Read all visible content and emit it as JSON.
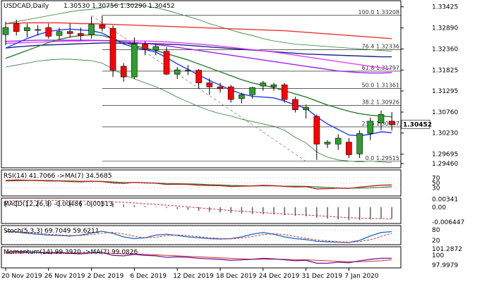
{
  "chart_data": {
    "type": "candlestick",
    "title": "USDCAD,Daily",
    "ohlc_label": "1.30530 1.30756 1.30290 1.30452",
    "last_price": 1.30452,
    "last_price_label": "1.30452",
    "y_range": [
      1.2935,
      1.3358
    ],
    "y_ticks": [
      "1.33425",
      "1.32890",
      "1.32360",
      "1.31825",
      "1.31295",
      "1.30760",
      "1.30230",
      "1.29695",
      "1.29460"
    ],
    "y_tick_values": [
      1.33425,
      1.3289,
      1.3236,
      1.31825,
      1.31295,
      1.3076,
      1.3023,
      1.29695,
      1.2946
    ],
    "x_ticks": [
      "20 Nov 2019",
      "26 Nov 2019",
      "2 Dec 2019",
      "6 Dec 2019",
      "12 Dec 2019",
      "18 Dec 2019",
      "24 Dec 2019",
      "31 Dec 2019",
      "7 Jan 2020"
    ],
    "x_tick_index": [
      0,
      4,
      8,
      12,
      16,
      20,
      24,
      28,
      32
    ],
    "candles": [
      {
        "o": 1.3272,
        "h": 1.3305,
        "l": 1.3245,
        "c": 1.329
      },
      {
        "o": 1.33,
        "h": 1.331,
        "l": 1.327,
        "c": 1.328
      },
      {
        "o": 1.3282,
        "h": 1.33,
        "l": 1.3265,
        "c": 1.329
      },
      {
        "o": 1.3283,
        "h": 1.3296,
        "l": 1.327,
        "c": 1.3285
      },
      {
        "o": 1.329,
        "h": 1.33,
        "l": 1.3262,
        "c": 1.3268
      },
      {
        "o": 1.327,
        "h": 1.329,
        "l": 1.326,
        "c": 1.328
      },
      {
        "o": 1.328,
        "h": 1.33,
        "l": 1.3265,
        "c": 1.3275
      },
      {
        "o": 1.3275,
        "h": 1.329,
        "l": 1.3258,
        "c": 1.327
      },
      {
        "o": 1.3272,
        "h": 1.3318,
        "l": 1.3262,
        "c": 1.3298
      },
      {
        "o": 1.3297,
        "h": 1.332,
        "l": 1.328,
        "c": 1.3288
      },
      {
        "o": 1.3288,
        "h": 1.3295,
        "l": 1.3165,
        "c": 1.3182
      },
      {
        "o": 1.3192,
        "h": 1.32,
        "l": 1.3153,
        "c": 1.3165
      },
      {
        "o": 1.3165,
        "h": 1.3265,
        "l": 1.316,
        "c": 1.3248
      },
      {
        "o": 1.3248,
        "h": 1.3255,
        "l": 1.322,
        "c": 1.3235
      },
      {
        "o": 1.3233,
        "h": 1.325,
        "l": 1.322,
        "c": 1.3242
      },
      {
        "o": 1.323,
        "h": 1.324,
        "l": 1.317,
        "c": 1.3172
      },
      {
        "o": 1.3172,
        "h": 1.319,
        "l": 1.316,
        "c": 1.3183
      },
      {
        "o": 1.318,
        "h": 1.3195,
        "l": 1.317,
        "c": 1.3182
      },
      {
        "o": 1.3182,
        "h": 1.3185,
        "l": 1.3135,
        "c": 1.315
      },
      {
        "o": 1.315,
        "h": 1.3162,
        "l": 1.312,
        "c": 1.314
      },
      {
        "o": 1.314,
        "h": 1.315,
        "l": 1.3125,
        "c": 1.3135
      },
      {
        "o": 1.314,
        "h": 1.3145,
        "l": 1.31,
        "c": 1.3108
      },
      {
        "o": 1.311,
        "h": 1.3125,
        "l": 1.3098,
        "c": 1.312
      },
      {
        "o": 1.312,
        "h": 1.314,
        "l": 1.311,
        "c": 1.3138
      },
      {
        "o": 1.3142,
        "h": 1.3155,
        "l": 1.313,
        "c": 1.315
      },
      {
        "o": 1.314,
        "h": 1.315,
        "l": 1.313,
        "c": 1.3145
      },
      {
        "o": 1.3145,
        "h": 1.315,
        "l": 1.31,
        "c": 1.3108
      },
      {
        "o": 1.3108,
        "h": 1.3115,
        "l": 1.3075,
        "c": 1.3082
      },
      {
        "o": 1.3082,
        "h": 1.3095,
        "l": 1.306,
        "c": 1.3088
      },
      {
        "o": 1.3065,
        "h": 1.307,
        "l": 1.2955,
        "c": 1.2995
      },
      {
        "o": 1.2995,
        "h": 1.3005,
        "l": 1.2985,
        "c": 1.3
      },
      {
        "o": 1.2995,
        "h": 1.302,
        "l": 1.298,
        "c": 1.301
      },
      {
        "o": 1.3,
        "h": 1.301,
        "l": 1.296,
        "c": 1.2968
      },
      {
        "o": 1.297,
        "h": 1.303,
        "l": 1.296,
        "c": 1.3022
      },
      {
        "o": 1.3022,
        "h": 1.3062,
        "l": 1.3005,
        "c": 1.3053
      },
      {
        "o": 1.3048,
        "h": 1.308,
        "l": 1.303,
        "c": 1.307
      },
      {
        "o": 1.3053,
        "h": 1.3076,
        "l": 1.3029,
        "c": 1.3045
      }
    ],
    "fib_levels": [
      {
        "label": "100.0 1.33208",
        "value": 1.33208
      },
      {
        "label": "76.4 1.32336",
        "value": 1.32336
      },
      {
        "label": "61.8 1.31797",
        "value": 1.31797
      },
      {
        "label": "50.0 1.31361",
        "value": 1.31361
      },
      {
        "label": "38.2 1.30926",
        "value": 1.30926
      },
      {
        "label": "23.6 1.30387",
        "value": 1.30387
      },
      {
        "label": "0.0 1.29515",
        "value": 1.29515
      }
    ],
    "moving_averages": [
      {
        "color": "#1a237e",
        "values": [
          1.3238,
          1.3241,
          1.3243,
          1.3245,
          1.3246,
          1.3247,
          1.3248,
          1.3249,
          1.325,
          1.3251,
          1.3251,
          1.325,
          1.325,
          1.325,
          1.3249,
          1.3248,
          1.3247,
          1.3245,
          1.3243,
          1.3241,
          1.3239,
          1.3237,
          1.3235,
          1.3233,
          1.3231,
          1.3229,
          1.3227,
          1.3225,
          1.3223,
          1.3222,
          1.3221,
          1.322,
          1.3219,
          1.3218,
          1.3217,
          1.3216,
          1.3216
        ]
      },
      {
        "color": "#e53935",
        "values": [
          1.33,
          1.3301,
          1.3302,
          1.3302,
          1.3302,
          1.3302,
          1.3301,
          1.33,
          1.33,
          1.3299,
          1.3298,
          1.3297,
          1.3296,
          1.3295,
          1.3294,
          1.3293,
          1.3292,
          1.3291,
          1.329,
          1.3289,
          1.3288,
          1.3287,
          1.3286,
          1.3285,
          1.3284,
          1.3283,
          1.3282,
          1.328,
          1.3278,
          1.3276,
          1.3274,
          1.3272,
          1.327,
          1.3268,
          1.3266,
          1.3264,
          1.3262
        ]
      },
      {
        "color": "#e040fb",
        "values": [
          1.325,
          1.3251,
          1.3252,
          1.3253,
          1.3254,
          1.3255,
          1.3256,
          1.3256,
          1.3257,
          1.3257,
          1.3257,
          1.3257,
          1.3256,
          1.3256,
          1.3255,
          1.3254,
          1.3252,
          1.325,
          1.3248,
          1.3246,
          1.3243,
          1.324,
          1.3237,
          1.3234,
          1.3231,
          1.3228,
          1.3224,
          1.322,
          1.3216,
          1.3212,
          1.3208,
          1.3204,
          1.32,
          1.3196,
          1.3192,
          1.3188,
          1.3185
        ]
      },
      {
        "color": "#a020f0",
        "values": [
          1.3255,
          1.3256,
          1.3257,
          1.3258,
          1.3258,
          1.3258,
          1.3258,
          1.3258,
          1.3258,
          1.3257,
          1.3256,
          1.3254,
          1.3252,
          1.325,
          1.3247,
          1.3244,
          1.324,
          1.3236,
          1.3232,
          1.3228,
          1.3224,
          1.322,
          1.3216,
          1.3212,
          1.3208,
          1.3204,
          1.32,
          1.3196,
          1.3192,
          1.3188,
          1.3184,
          1.318,
          1.3178,
          1.3176,
          1.3175,
          1.3175,
          1.3176
        ]
      },
      {
        "color": "#2e7d32",
        "values": [
          1.3212,
          1.3222,
          1.3232,
          1.3242,
          1.3252,
          1.326,
          1.3266,
          1.327,
          1.3272,
          1.327,
          1.3262,
          1.3252,
          1.3244,
          1.3238,
          1.3232,
          1.3224,
          1.3216,
          1.3208,
          1.3198,
          1.3188,
          1.3178,
          1.3168,
          1.3158,
          1.315,
          1.3144,
          1.3138,
          1.313,
          1.3122,
          1.3114,
          1.3104,
          1.3094,
          1.3086,
          1.3078,
          1.3072,
          1.3068,
          1.3066,
          1.3064
        ]
      },
      {
        "color": "#1e3cff",
        "values": [
          1.3238,
          1.325,
          1.3262,
          1.3272,
          1.328,
          1.3284,
          1.3286,
          1.3284,
          1.3282,
          1.3276,
          1.3262,
          1.3248,
          1.324,
          1.3234,
          1.3228,
          1.3214,
          1.3198,
          1.3184,
          1.317,
          1.3156,
          1.3144,
          1.3132,
          1.3122,
          1.3116,
          1.3114,
          1.3112,
          1.3104,
          1.3094,
          1.3086,
          1.3064,
          1.3046,
          1.3032,
          1.3018,
          1.3016,
          1.302,
          1.3026,
          1.3024
        ]
      }
    ],
    "bollinger": {
      "color": "#2e7d32",
      "upper": [
        1.33,
        1.3305,
        1.331,
        1.3315,
        1.332,
        1.3325,
        1.333,
        1.3334,
        1.3336,
        1.334,
        1.3346,
        1.335,
        1.3348,
        1.3345,
        1.334,
        1.3334,
        1.3326,
        1.3318,
        1.331,
        1.33,
        1.3292,
        1.3284,
        1.3276,
        1.327,
        1.3262,
        1.3256,
        1.3252,
        1.3248,
        1.3246,
        1.3244,
        1.3242,
        1.324,
        1.3238,
        1.3236,
        1.3234,
        1.3232,
        1.323
      ],
      "lower": [
        1.319,
        1.3195,
        1.32,
        1.3205,
        1.3208,
        1.321,
        1.321,
        1.3208,
        1.3206,
        1.32,
        1.3185,
        1.317,
        1.316,
        1.315,
        1.314,
        1.3128,
        1.3114,
        1.3102,
        1.309,
        1.308,
        1.3072,
        1.3066,
        1.3058,
        1.3052,
        1.3046,
        1.304,
        1.303,
        1.3012,
        1.2998,
        1.2975,
        1.2962,
        1.2955,
        1.2952,
        1.295,
        1.2952,
        1.295,
        1.2948
      ]
    },
    "trendline": {
      "from": [
        8,
        1.33208
      ],
      "to": [
        28,
        1.29515
      ]
    },
    "rsi": {
      "label": "RSI(14) 41.7066 ->MA(7) 34.5685",
      "ticks": [
        "70",
        "50",
        "30"
      ],
      "range": [
        0,
        100
      ],
      "rsi": [
        60,
        62,
        61,
        60,
        58,
        58,
        56,
        55,
        57,
        56,
        50,
        48,
        52,
        50,
        49,
        44,
        45,
        44,
        41,
        40,
        39,
        36,
        37,
        38,
        40,
        39,
        36,
        34,
        35,
        26,
        27,
        29,
        28,
        33,
        37,
        41,
        42
      ],
      "ma": [
        58,
        59,
        60,
        60,
        60,
        59,
        58,
        57,
        57,
        56,
        54,
        52,
        52,
        51,
        50,
        48,
        47,
        46,
        45,
        43,
        42,
        40,
        39,
        38,
        38,
        38,
        37,
        37,
        36,
        34,
        32,
        30,
        29,
        29,
        30,
        32,
        35
      ]
    },
    "macd": {
      "label": "MACD(12,26,9) -0.00486 -0.00513",
      "ticks": [
        "0.00341",
        "0.00",
        "-0.006447"
      ],
      "range": [
        -0.0068,
        0.0036
      ],
      "hist": [
        0.0028,
        0.0029,
        0.003,
        0.003,
        0.0029,
        0.0028,
        0.0026,
        0.0024,
        0.0023,
        0.0022,
        0.0018,
        0.0012,
        0.0008,
        0.0005,
        0.0002,
        -0.0004,
        -0.0008,
        -0.0012,
        -0.0016,
        -0.002,
        -0.0023,
        -0.0026,
        -0.0028,
        -0.003,
        -0.0031,
        -0.0032,
        -0.0035,
        -0.0038,
        -0.004,
        -0.0046,
        -0.005,
        -0.0053,
        -0.0056,
        -0.0056,
        -0.0054,
        -0.0051,
        -0.0049
      ],
      "signal": [
        0.0026,
        0.0027,
        0.0028,
        0.0029,
        0.0029,
        0.0029,
        0.0028,
        0.0027,
        0.0026,
        0.0025,
        0.0023,
        0.0021,
        0.0018,
        0.0015,
        0.0012,
        0.0008,
        0.0005,
        0.0001,
        -0.0003,
        -0.0007,
        -0.0011,
        -0.0015,
        -0.0018,
        -0.0021,
        -0.0024,
        -0.0027,
        -0.003,
        -0.0032,
        -0.0034,
        -0.0037,
        -0.004,
        -0.0043,
        -0.0046,
        -0.0048,
        -0.0049,
        -0.005,
        -0.0051
      ]
    },
    "stoch": {
      "label": "Stoch(5,3,3) 69.7049 59.6211",
      "ticks": [
        "80",
        "20"
      ],
      "range": [
        0,
        100
      ],
      "k": [
        70,
        68,
        60,
        55,
        50,
        48,
        45,
        50,
        62,
        72,
        60,
        40,
        30,
        35,
        50,
        55,
        48,
        40,
        35,
        30,
        28,
        30,
        40,
        55,
        65,
        55,
        40,
        30,
        25,
        15,
        12,
        10,
        8,
        20,
        45,
        65,
        70
      ],
      "d": [
        72,
        70,
        66,
        61,
        55,
        51,
        48,
        48,
        53,
        61,
        65,
        57,
        43,
        35,
        38,
        47,
        51,
        48,
        41,
        35,
        31,
        29,
        33,
        42,
        53,
        58,
        53,
        42,
        32,
        23,
        17,
        12,
        10,
        13,
        24,
        43,
        60
      ]
    },
    "momentum": {
      "label": "Momentum(14) 99.3920 ->MA(7) 99.0826",
      "ticks": [
        "101.2872",
        "100",
        "97.9979"
      ],
      "range": [
        97.6,
        101.6
      ],
      "mom": [
        100.6,
        100.8,
        100.7,
        100.6,
        100.4,
        100.5,
        100.4,
        100.3,
        100.5,
        100.6,
        100.0,
        99.9,
        100.2,
        100.0,
        99.9,
        99.6,
        99.7,
        99.6,
        99.4,
        99.3,
        99.2,
        99.0,
        99.1,
        99.2,
        99.4,
        99.3,
        99.1,
        98.9,
        99.0,
        98.4,
        98.4,
        98.6,
        98.5,
        98.9,
        99.2,
        99.4,
        99.4
      ],
      "ma": [
        100.4,
        100.5,
        100.6,
        100.6,
        100.6,
        100.6,
        100.5,
        100.5,
        100.5,
        100.5,
        100.4,
        100.3,
        100.3,
        100.2,
        100.1,
        100.0,
        99.9,
        99.8,
        99.7,
        99.6,
        99.5,
        99.4,
        99.3,
        99.2,
        99.2,
        99.2,
        99.2,
        99.1,
        99.1,
        99.0,
        98.9,
        98.8,
        98.7,
        98.7,
        98.8,
        98.9,
        99.1
      ]
    },
    "colors": {
      "bull": "#2ca02c",
      "bear": "#ff0000",
      "border": "#000000",
      "fib": "#666666",
      "trend": "#888888"
    }
  }
}
